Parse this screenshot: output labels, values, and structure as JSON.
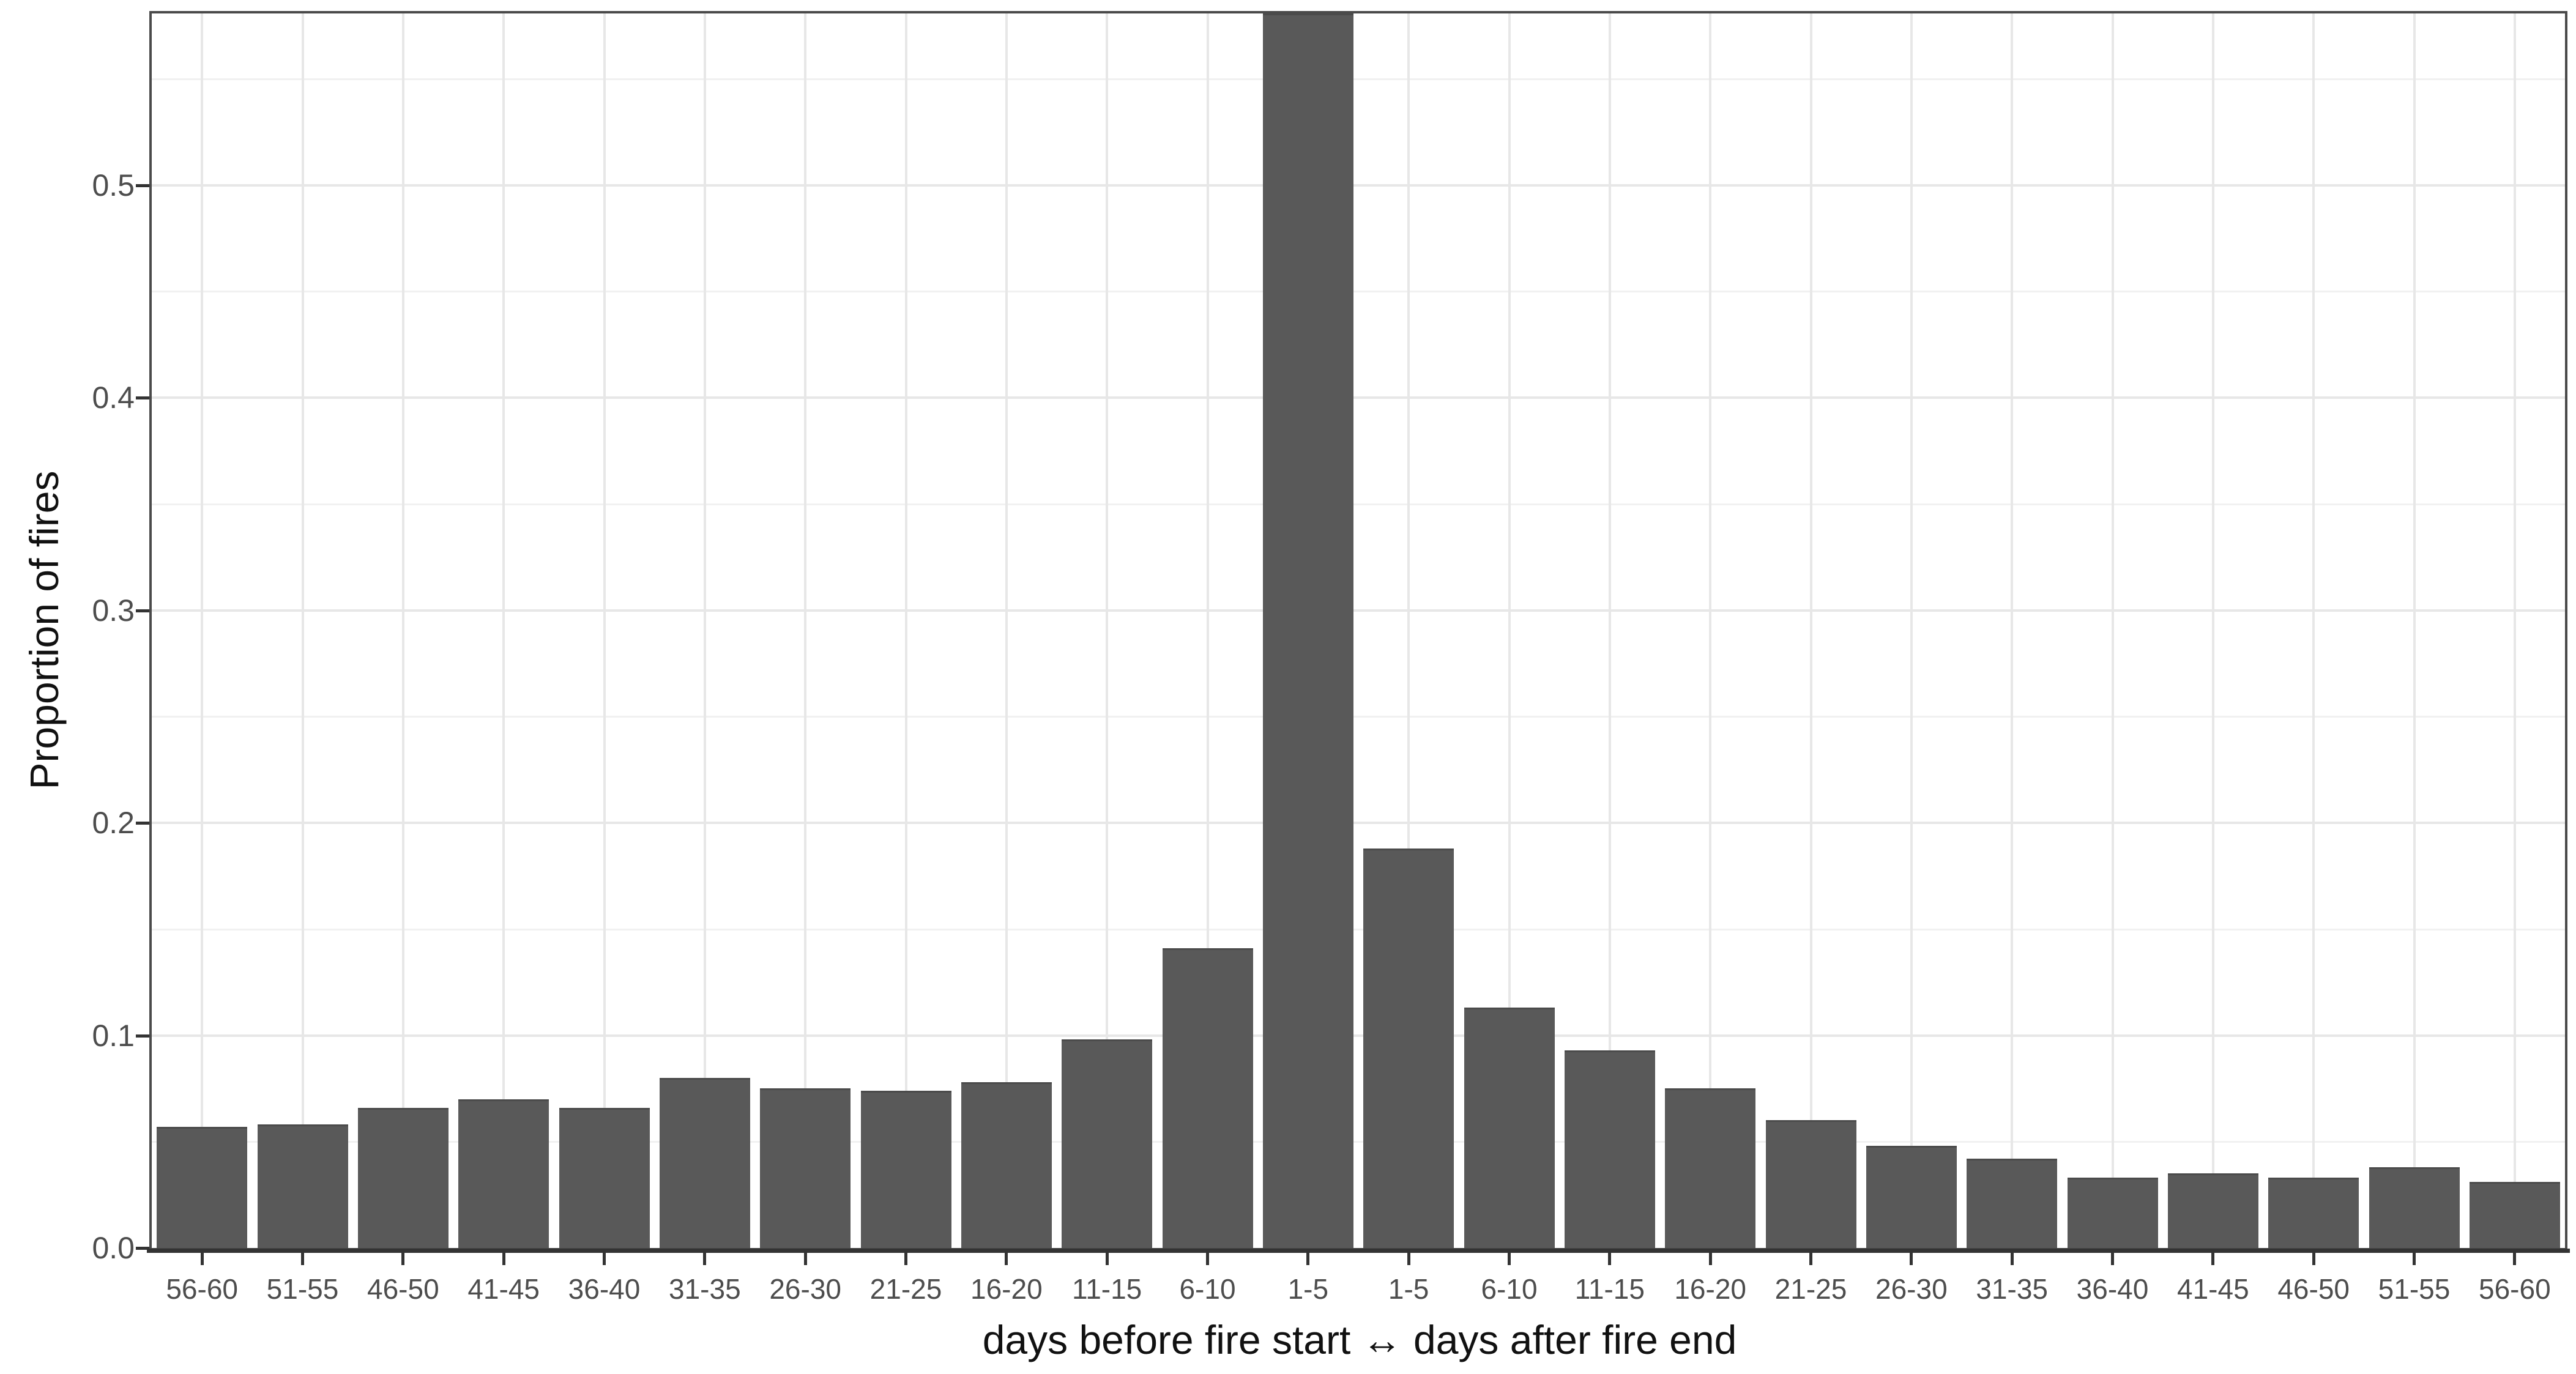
{
  "chart_data": {
    "type": "bar",
    "title": "",
    "xlabel": "days before fire start ↔ days after fire end",
    "ylabel": "Proportion of fires",
    "categories": [
      "56-60",
      "51-55",
      "46-50",
      "41-45",
      "36-40",
      "31-35",
      "26-30",
      "21-25",
      "16-20",
      "11-15",
      "6-10",
      "1-5",
      "1-5",
      "6-10",
      "11-15",
      "16-20",
      "21-25",
      "26-30",
      "31-35",
      "36-40",
      "41-45",
      "46-50",
      "51-55",
      "56-60"
    ],
    "values": [
      0.057,
      0.058,
      0.066,
      0.07,
      0.066,
      0.08,
      0.075,
      0.074,
      0.078,
      0.098,
      0.141,
      0.583,
      0.188,
      0.113,
      0.093,
      0.075,
      0.06,
      0.048,
      0.042,
      0.033,
      0.035,
      0.033,
      0.038,
      0.031
    ],
    "clipped_indices": [
      11
    ],
    "clipped_note": "left-side 1-5 bar is cut off by the top of the plot panel (extends beyond visible axis range)",
    "y_ticks": [
      {
        "value": 0.0,
        "label": "0.0"
      },
      {
        "value": 0.1,
        "label": "0.1"
      },
      {
        "value": 0.2,
        "label": "0.2"
      },
      {
        "value": 0.3,
        "label": "0.3"
      },
      {
        "value": 0.4,
        "label": "0.4"
      },
      {
        "value": 0.5,
        "label": "0.5"
      }
    ],
    "minor_grid_values": [
      0.05,
      0.15,
      0.25,
      0.35,
      0.45,
      0.55
    ],
    "ylim": [
      0,
      0.583
    ],
    "grid": "horizontal major every 0.1 with minor every 0.05; vertical major at each category center",
    "legend": "none",
    "colors": {
      "bar_fill": "#595959",
      "bar_edge": "#4b4b4b",
      "grid_major": "#e7e7e7",
      "grid_minor": "#f1f1f1",
      "panel_border": "#4a4a4a",
      "axis_line": "#333333",
      "tick_label": "#4d4d4d",
      "axis_title": "#111111",
      "background": "#ffffff"
    }
  }
}
